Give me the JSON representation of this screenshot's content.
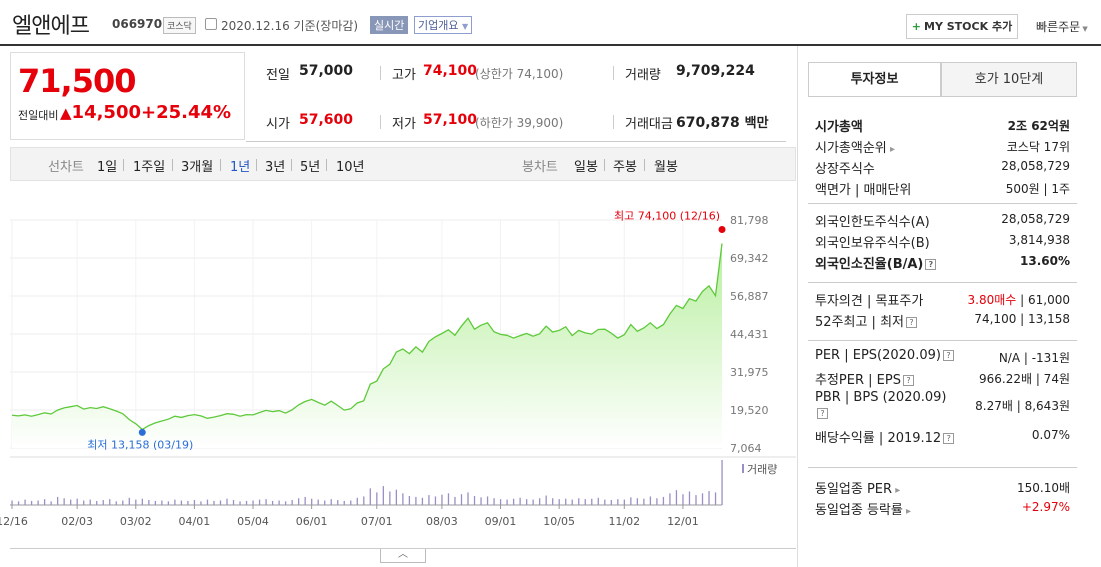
{
  "header": {
    "title": "엘앤에프",
    "code": "066970",
    "market": "코스닥",
    "date": "2020.12.16 기준(장마감)",
    "realtime": "실시간",
    "overview": "기업개요",
    "mystock": "MY STOCK 추가",
    "quick_order": "빠른주문"
  },
  "price": {
    "current": "71,500",
    "change_label": "전일대비",
    "change_value": "14,500",
    "change_pct": "+25.44%"
  },
  "stats": {
    "prev_close_label": "전일",
    "prev_close": "57,000",
    "high_label": "고가",
    "high": "74,100",
    "high_limit": "(상한가 74,100)",
    "volume_label": "거래량",
    "volume": "9,709,224",
    "open_label": "시가",
    "open": "57,600",
    "low_label": "저가",
    "low": "57,100",
    "low_limit": "(하한가 39,900)",
    "amount_label": "거래대금",
    "amount": "670,878",
    "amount_unit": "백만"
  },
  "chart_tabs": {
    "line_label": "선차트",
    "periods": [
      "1일",
      "1주일",
      "3개월",
      "1년",
      "3년",
      "5년",
      "10년"
    ],
    "selected": "1년",
    "candle_label": "봉차트",
    "candle_periods": [
      "일봉",
      "주봉",
      "월봉"
    ]
  },
  "chart_data": {
    "type": "area",
    "y_ticks": [
      "81,798",
      "69,342",
      "56,887",
      "44,431",
      "31,975",
      "19,520",
      "7,064"
    ],
    "ylim": [
      7064,
      81798
    ],
    "x_ticks": [
      "12/16",
      "02/03",
      "03/02",
      "04/01",
      "05/04",
      "06/01",
      "07/01",
      "08/03",
      "09/01",
      "10/05",
      "11/02",
      "12/01"
    ],
    "max_annotation": "최고 74,100 (12/16)",
    "min_annotation": "최저 13,158 (03/19)",
    "volume_label": "거래량",
    "series": [
      {
        "values": [
          17800,
          17600,
          17900,
          17500,
          18000,
          18600,
          18200,
          19500,
          20200,
          20600,
          21000,
          19800,
          20300,
          20000,
          20600,
          19900,
          19200,
          18300,
          16400,
          15000,
          13158,
          14400,
          15300,
          15900,
          16500,
          17500,
          17100,
          17700,
          18000,
          17600,
          16800,
          17200,
          17700,
          18300,
          18100,
          17500,
          18000,
          17900,
          18700,
          19400,
          19000,
          19300,
          18500,
          19600,
          21200,
          22300,
          23000,
          22000,
          21100,
          22400,
          21000,
          19500,
          19900,
          21800,
          22500,
          28000,
          29000,
          33000,
          34500,
          38500,
          39500,
          38000,
          40200,
          38500,
          42000,
          43500,
          44600,
          45800,
          44000,
          47000,
          49600,
          46000,
          47300,
          48100,
          45200,
          44300,
          44000,
          43100,
          43900,
          44600,
          43700,
          44500,
          47000,
          45100,
          45600,
          46800,
          43900,
          45600,
          44800,
          44400,
          45900,
          46000,
          44700,
          43100,
          44200,
          47500,
          45300,
          46400,
          48100,
          46200,
          47500,
          51000,
          53800,
          52800,
          56000,
          55200,
          58400,
          60200,
          57000,
          74100
        ]
      }
    ],
    "volume_values": [
      0.1,
      0.08,
      0.12,
      0.09,
      0.1,
      0.13,
      0.08,
      0.18,
      0.15,
      0.12,
      0.14,
      0.1,
      0.12,
      0.09,
      0.11,
      0.13,
      0.08,
      0.1,
      0.16,
      0.12,
      0.14,
      0.11,
      0.09,
      0.1,
      0.08,
      0.12,
      0.1,
      0.09,
      0.11,
      0.08,
      0.12,
      0.09,
      0.1,
      0.14,
      0.11,
      0.08,
      0.09,
      0.1,
      0.12,
      0.13,
      0.09,
      0.1,
      0.08,
      0.11,
      0.15,
      0.18,
      0.14,
      0.12,
      0.1,
      0.13,
      0.11,
      0.09,
      0.1,
      0.16,
      0.19,
      0.37,
      0.28,
      0.42,
      0.3,
      0.34,
      0.26,
      0.2,
      0.18,
      0.16,
      0.22,
      0.19,
      0.23,
      0.26,
      0.18,
      0.24,
      0.28,
      0.2,
      0.17,
      0.19,
      0.15,
      0.13,
      0.12,
      0.14,
      0.16,
      0.13,
      0.12,
      0.15,
      0.21,
      0.15,
      0.13,
      0.14,
      0.12,
      0.15,
      0.13,
      0.14,
      0.16,
      0.12,
      0.11,
      0.13,
      0.12,
      0.17,
      0.15,
      0.14,
      0.19,
      0.15,
      0.18,
      0.26,
      0.33,
      0.24,
      0.3,
      0.22,
      0.26,
      0.31,
      0.28,
      1.0
    ]
  },
  "right_panel": {
    "tab_info": "투자정보",
    "tab_quote": "호가 10단계",
    "rows1": [
      {
        "label": "시가총액",
        "value": "2조 62억원",
        "bold": true
      },
      {
        "label": "시가총액순위",
        "value": "코스닥 17위",
        "caret": true
      },
      {
        "label": "상장주식수",
        "value": "28,058,729"
      },
      {
        "label": "액면가 | 매매단위",
        "value": "500원 | 1주"
      }
    ],
    "rows2": [
      {
        "label": "외국인한도주식수(A)",
        "value": "28,058,729"
      },
      {
        "label": "외국인보유주식수(B)",
        "value": "3,814,938"
      },
      {
        "label": "외국인소진율(B/A)",
        "value": "13.60%",
        "bold": true,
        "help": true
      }
    ],
    "rows3": [
      {
        "label": "투자의견 | 목표주가",
        "value_red": "3.80매수",
        "value": " | 61,000"
      },
      {
        "label": "52주최고 | 최저",
        "value": "74,100 | 13,158",
        "help": true
      }
    ],
    "rows4": [
      {
        "label": "PER | EPS(2020.09)",
        "value": "N/A | -131원",
        "help": true
      },
      {
        "label": "추정PER | EPS",
        "value": "966.22배 | 74원",
        "help": true
      },
      {
        "label": "PBR | BPS (2020.09)",
        "value": "8.27배 | 8,643원",
        "help": true
      },
      {
        "label": "배당수익률 | 2019.12",
        "value": "0.07%",
        "help": true
      }
    ],
    "rows5": [
      {
        "label": "동일업종 PER",
        "value": "150.10배",
        "caret": true
      },
      {
        "label": "동일업종 등락률",
        "value": "+2.97%",
        "caret": true
      }
    ]
  }
}
